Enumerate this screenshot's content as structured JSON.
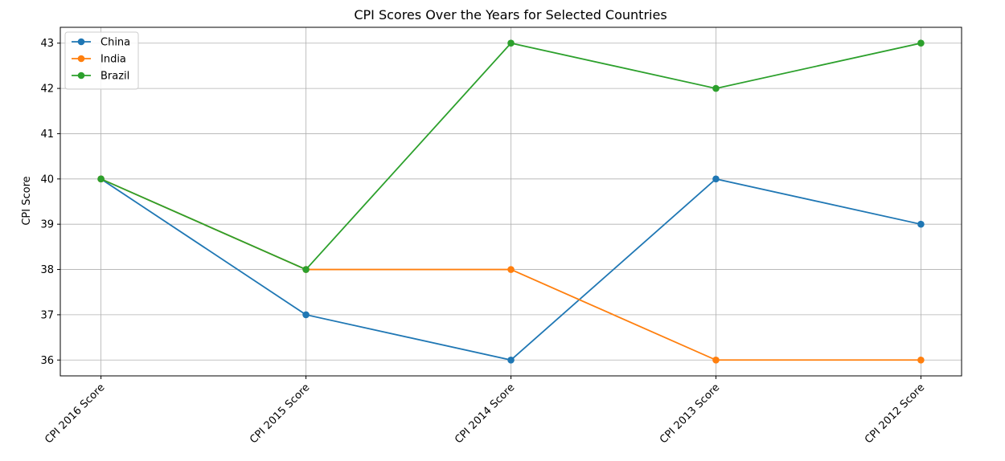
{
  "chart_data": {
    "type": "line",
    "title": "CPI Scores Over the Years for Selected Countries",
    "xlabel": "",
    "ylabel": "CPI Score",
    "categories": [
      "CPI 2016 Score",
      "CPI 2015 Score",
      "CPI 2014 Score",
      "CPI 2013 Score",
      "CPI 2012 Score"
    ],
    "series": [
      {
        "name": "China",
        "color": "#1f77b4",
        "values": [
          40,
          37,
          36,
          40,
          39
        ]
      },
      {
        "name": "India",
        "color": "#ff7f0e",
        "values": [
          40,
          38,
          38,
          36,
          36
        ]
      },
      {
        "name": "Brazil",
        "color": "#2ca02c",
        "values": [
          40,
          38,
          43,
          42,
          43
        ]
      }
    ],
    "ylim": [
      35.65,
      43.35
    ],
    "yticks": [
      36,
      37,
      38,
      39,
      40,
      41,
      42,
      43
    ],
    "grid": true,
    "legend": "top-left",
    "marker": "circle"
  }
}
